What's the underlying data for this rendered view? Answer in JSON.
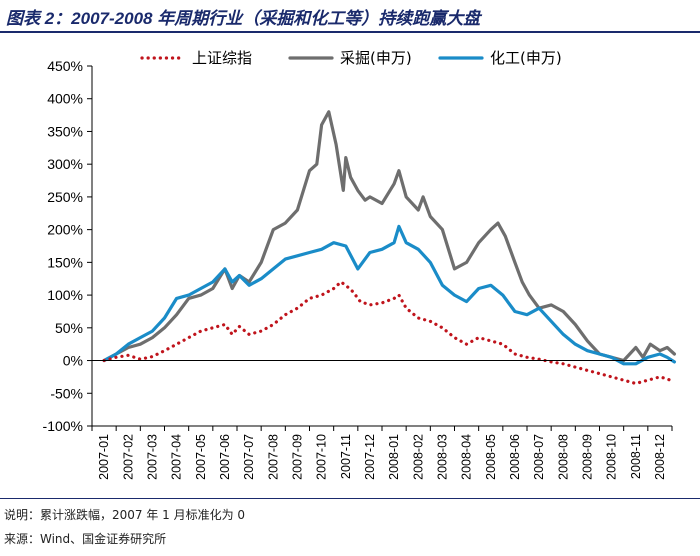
{
  "header": {
    "title": "图表 2：2007-2008 年周期行业（采掘和化工等）持续跑赢大盘"
  },
  "footer": {
    "note": "说明：累计涨跌幅，2007 年 1 月标准化为 0",
    "source": "来源：Wind、国金证券研究所"
  },
  "chart_data": {
    "type": "line",
    "title": "2007-2008 年周期行业（采掘和化工等）持续跑赢大盘",
    "xlabel": "",
    "ylabel": "",
    "ylim": [
      -100,
      450
    ],
    "yticks": [
      -100,
      -50,
      0,
      50,
      100,
      150,
      200,
      250,
      300,
      350,
      400,
      450
    ],
    "ytick_labels": [
      "-100%",
      "-50%",
      "0%",
      "50%",
      "100%",
      "150%",
      "200%",
      "250%",
      "300%",
      "350%",
      "400%",
      "450%"
    ],
    "categories": [
      "2007-01",
      "2007-02",
      "2007-03",
      "2007-04",
      "2007-05",
      "2007-06",
      "2007-07",
      "2007-08",
      "2007-09",
      "2007-10",
      "2007-11",
      "2007-12",
      "2008-01",
      "2008-02",
      "2008-03",
      "2008-04",
      "2008-05",
      "2008-06",
      "2008-07",
      "2008-08",
      "2008-09",
      "2008-10",
      "2008-11",
      "2008-12"
    ],
    "legend_position": "top",
    "series": [
      {
        "name": "上证综指",
        "color": "#c0141c",
        "style": "dotted",
        "x": [
          0,
          0.5,
          1,
          1.5,
          2,
          2.5,
          3,
          3.5,
          4,
          4.5,
          5,
          5.3,
          5.6,
          6,
          6.5,
          7,
          7.5,
          8,
          8.5,
          9,
          9.5,
          9.8,
          10,
          10.3,
          10.6,
          11,
          11.5,
          12,
          12.2,
          12.5,
          13,
          13.5,
          14,
          14.5,
          15,
          15.5,
          16,
          16.5,
          17,
          17.5,
          18,
          18.5,
          19,
          19.5,
          20,
          20.5,
          21,
          21.5,
          22,
          22.5,
          23,
          23.3,
          23.6
        ],
        "values": [
          0,
          5,
          8,
          2,
          6,
          15,
          25,
          35,
          45,
          50,
          55,
          40,
          52,
          40,
          45,
          55,
          70,
          80,
          95,
          100,
          110,
          120,
          115,
          105,
          90,
          85,
          88,
          95,
          100,
          80,
          65,
          60,
          50,
          35,
          25,
          35,
          30,
          25,
          10,
          5,
          2,
          -2,
          -5,
          -10,
          -15,
          -20,
          -25,
          -30,
          -35,
          -30,
          -25,
          -28,
          -33
        ]
      },
      {
        "name": "采掘(申万)",
        "color": "#6e6e6e",
        "style": "solid",
        "x": [
          0,
          0.5,
          1,
          1.5,
          2,
          2.5,
          3,
          3.5,
          4,
          4.5,
          5,
          5.3,
          5.6,
          6,
          6.5,
          7,
          7.5,
          8,
          8.5,
          8.8,
          9,
          9.3,
          9.6,
          9.9,
          10,
          10.2,
          10.5,
          10.8,
          11,
          11.5,
          12,
          12.2,
          12.5,
          13,
          13.2,
          13.5,
          14,
          14.5,
          15,
          15.5,
          16,
          16.3,
          16.6,
          17,
          17.3,
          17.6,
          18,
          18.5,
          19,
          19.5,
          20,
          20.5,
          21,
          21.5,
          22,
          22.3,
          22.6,
          23,
          23.3,
          23.6
        ],
        "values": [
          0,
          10,
          20,
          25,
          35,
          50,
          70,
          95,
          100,
          110,
          140,
          110,
          130,
          120,
          150,
          200,
          210,
          230,
          290,
          300,
          360,
          380,
          330,
          260,
          310,
          280,
          260,
          245,
          250,
          240,
          270,
          290,
          250,
          230,
          250,
          220,
          200,
          140,
          150,
          180,
          200,
          210,
          190,
          150,
          120,
          100,
          80,
          85,
          75,
          55,
          30,
          10,
          5,
          0,
          20,
          5,
          25,
          15,
          20,
          10
        ]
      },
      {
        "name": "化工(申万)",
        "color": "#1a8cc8",
        "style": "solid",
        "x": [
          0,
          0.5,
          1,
          1.5,
          2,
          2.5,
          3,
          3.5,
          4,
          4.5,
          5,
          5.3,
          5.6,
          6,
          6.5,
          7,
          7.5,
          8,
          8.5,
          9,
          9.5,
          10,
          10.5,
          11,
          11.5,
          12,
          12.2,
          12.5,
          13,
          13.5,
          14,
          14.5,
          15,
          15.5,
          16,
          16.5,
          17,
          17.5,
          18,
          18.5,
          19,
          19.5,
          20,
          20.5,
          21,
          21.5,
          22,
          22.5,
          23,
          23.3,
          23.6
        ],
        "values": [
          0,
          10,
          25,
          35,
          45,
          65,
          95,
          100,
          110,
          120,
          140,
          120,
          130,
          115,
          125,
          140,
          155,
          160,
          165,
          170,
          180,
          175,
          140,
          165,
          170,
          180,
          205,
          180,
          170,
          150,
          115,
          100,
          90,
          110,
          115,
          100,
          75,
          70,
          80,
          60,
          40,
          25,
          15,
          10,
          5,
          -5,
          -5,
          5,
          10,
          5,
          -2
        ]
      }
    ]
  }
}
